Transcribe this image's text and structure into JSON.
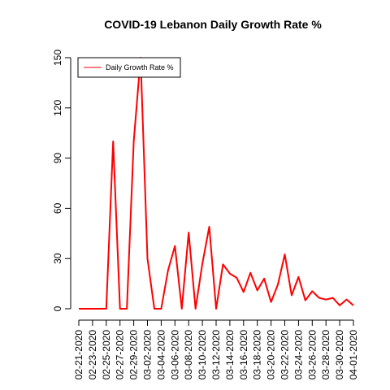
{
  "chart_data": {
    "type": "line",
    "title": "COVID-19 Lebanon Daily Growth Rate %",
    "xlabel": "",
    "ylabel": "",
    "ylim": [
      0,
      150
    ],
    "yticks": [
      0,
      30,
      60,
      90,
      120,
      150
    ],
    "grid": false,
    "legend_position": "top-left",
    "x": [
      "02-21-2020",
      "02-22-2020",
      "02-23-2020",
      "02-24-2020",
      "02-25-2020",
      "02-26-2020",
      "02-27-2020",
      "02-28-2020",
      "02-29-2020",
      "03-01-2020",
      "03-02-2020",
      "03-03-2020",
      "03-04-2020",
      "03-05-2020",
      "03-06-2020",
      "03-07-2020",
      "03-08-2020",
      "03-09-2020",
      "03-10-2020",
      "03-11-2020",
      "03-12-2020",
      "03-13-2020",
      "03-14-2020",
      "03-15-2020",
      "03-16-2020",
      "03-17-2020",
      "03-18-2020",
      "03-19-2020",
      "03-20-2020",
      "03-21-2020",
      "03-22-2020",
      "03-23-2020",
      "03-24-2020",
      "03-25-2020",
      "03-26-2020",
      "03-27-2020",
      "03-28-2020",
      "03-29-2020",
      "03-30-2020",
      "03-31-2020",
      "04-01-2020"
    ],
    "xticks": [
      "02-21-2020",
      "02-23-2020",
      "02-25-2020",
      "02-27-2020",
      "02-29-2020",
      "03-02-2020",
      "03-04-2020",
      "03-06-2020",
      "03-08-2020",
      "03-10-2020",
      "03-12-2020",
      "03-14-2020",
      "03-16-2020",
      "03-18-2020",
      "03-20-2020",
      "03-22-2020",
      "03-24-2020",
      "03-26-2020",
      "03-28-2020",
      "03-30-2020",
      "04-01-2020"
    ],
    "series": [
      {
        "name": "Daily Growth Rate %",
        "color": "#ff0000",
        "values": [
          0,
          0,
          0,
          0,
          0,
          100,
          0,
          0,
          100,
          150,
          30,
          0,
          0,
          23,
          37.5,
          0,
          45.5,
          0,
          27,
          49,
          0,
          26.5,
          21,
          18.5,
          10,
          21.5,
          11,
          18,
          4,
          14.5,
          32.5,
          8,
          19,
          5,
          10.5,
          6.5,
          5.5,
          6.5,
          2,
          5.5,
          2
        ]
      }
    ]
  }
}
